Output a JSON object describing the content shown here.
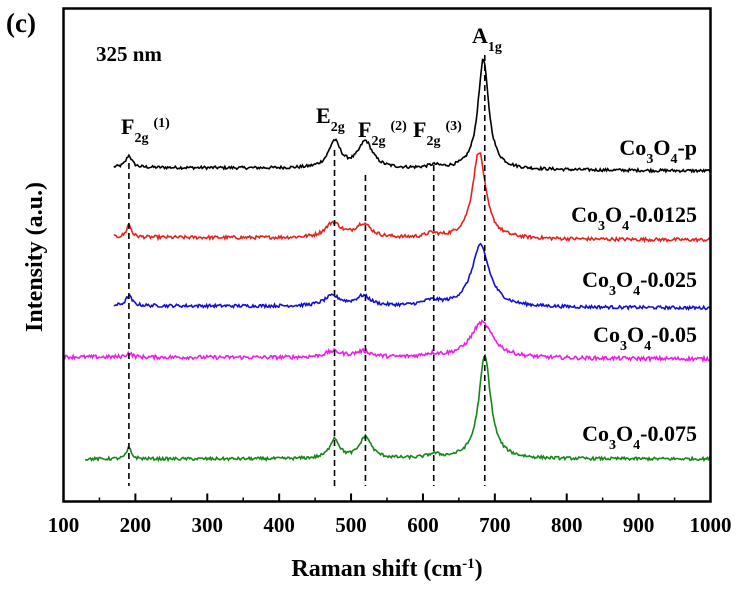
{
  "panel_label": "(c)",
  "chart_data": {
    "type": "line",
    "title": "",
    "wavelength_label": "325 nm",
    "xlabel_main": "Raman shift (cm",
    "xlabel_sup": "-1",
    "xlabel_close": ")",
    "ylabel": "Intensity (a.u.)",
    "xlim": [
      100,
      1000
    ],
    "xticks": [
      "100",
      "200",
      "300",
      "400",
      "500",
      "600",
      "700",
      "800",
      "900",
      "1000"
    ],
    "y_ticks_shown": false,
    "peaks": [
      {
        "position": 191,
        "base": "F",
        "sub": "2g",
        "sup": "(1)"
      },
      {
        "position": 477,
        "base": "E",
        "sub": "2g",
        "sup": ""
      },
      {
        "position": 520,
        "base": "F",
        "sub": "2g",
        "sup": "(2)"
      },
      {
        "position": 615,
        "base": "F",
        "sub": "2g",
        "sup": "(3)"
      },
      {
        "position": 686,
        "base": "A",
        "sub": "1g",
        "sup": ""
      }
    ],
    "series": [
      {
        "name": "Co3O4-p",
        "label_pre": "Co",
        "label_sub1": "3",
        "label_mid": "O",
        "label_sub2": "4",
        "label_post": "-p",
        "color": "#000000",
        "x_start": 170,
        "x_end": 1000,
        "baseline_offset": 4,
        "peaks": [
          [
            191,
            12,
            5
          ],
          [
            477,
            27,
            10
          ],
          [
            520,
            27,
            12
          ],
          [
            615,
            3,
            10
          ],
          [
            684,
            111,
            9
          ]
        ],
        "noise": 1.5
      },
      {
        "name": "Co3O4-0.0125",
        "label_pre": "Co",
        "label_sub1": "3",
        "label_mid": "O",
        "label_sub2": "4",
        "label_post": "-0.0125",
        "color": "#e8211c",
        "x_start": 170,
        "x_end": 1000,
        "baseline_offset": 3,
        "peaks": [
          [
            191,
            13,
            4
          ],
          [
            475,
            15,
            13
          ],
          [
            517,
            14,
            13
          ],
          [
            612,
            4,
            10
          ],
          [
            678,
            88,
            11
          ]
        ],
        "noise": 1.7
      },
      {
        "name": "Co3O4-0.025",
        "label_pre": "Co",
        "label_sub1": "3",
        "label_mid": "O",
        "label_sub2": "4",
        "label_post": "-0.025",
        "color": "#1010d8",
        "x_start": 170,
        "x_end": 1000,
        "baseline_offset": 2.5,
        "peaks": [
          [
            191,
            10,
            5
          ],
          [
            474,
            10,
            14
          ],
          [
            517,
            10,
            12
          ],
          [
            612,
            5,
            16
          ],
          [
            680,
            62,
            15
          ]
        ],
        "noise": 1.6
      },
      {
        "name": "Co3O4-0.05",
        "label_pre": "Co",
        "label_sub1": "3",
        "label_mid": "O",
        "label_sub2": "4",
        "label_post": "-0.05",
        "color": "#ee1ee9",
        "x_start": 100,
        "x_end": 1000,
        "baseline_offset": 2,
        "peaks": [
          [
            191,
            4,
            5
          ],
          [
            475,
            6,
            14
          ],
          [
            517,
            6,
            14
          ],
          [
            612,
            3,
            14
          ],
          [
            682,
            36,
            19
          ]
        ],
        "noise": 1.9
      },
      {
        "name": "Co3O4-0.075",
        "label_pre": "Co",
        "label_sub1": "3",
        "label_mid": "O",
        "label_sub2": "4",
        "label_post": "-0.075",
        "color": "#16861a",
        "x_start": 130,
        "x_end": 1000,
        "baseline_offset": 0,
        "peaks": [
          [
            191,
            11,
            4
          ],
          [
            477,
            20,
            8
          ],
          [
            520,
            22,
            10
          ],
          [
            615,
            4,
            10
          ],
          [
            686,
            104,
            10
          ]
        ],
        "noise": 1.5
      }
    ]
  }
}
